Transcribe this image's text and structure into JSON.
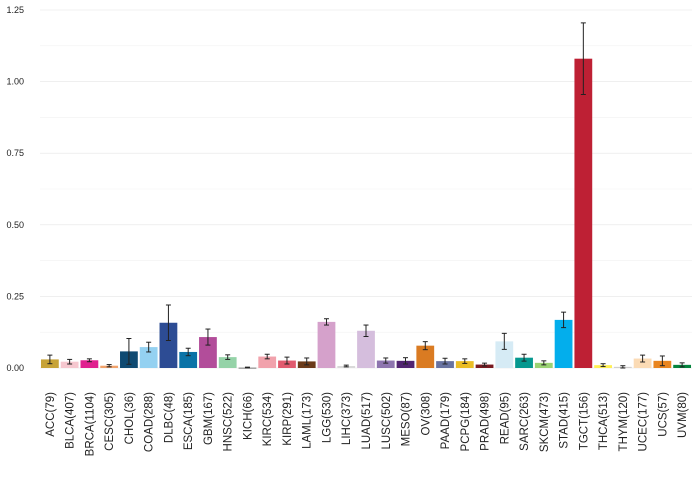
{
  "chart_data": {
    "type": "bar",
    "title": "",
    "xlabel": "",
    "ylabel": "",
    "ylim": [
      0,
      1.25
    ],
    "yticks": [
      0.0,
      0.25,
      0.5,
      0.75,
      1.0,
      1.25
    ],
    "ytick_labels": [
      "0.00",
      "0.25",
      "0.50",
      "0.75",
      "1.00",
      "1.25"
    ],
    "grid": true,
    "legend": "none",
    "categories": [
      "ACC(79)",
      "BLCA(407)",
      "BRCA(1104)",
      "CESC(305)",
      "CHOL(36)",
      "COAD(288)",
      "DLBC(48)",
      "ESCA(185)",
      "GBM(167)",
      "HNSC(522)",
      "KICH(66)",
      "KIRC(534)",
      "KIRP(291)",
      "LAML(173)",
      "LGG(530)",
      "LIHC(373)",
      "LUAD(517)",
      "LUSC(502)",
      "MESO(87)",
      "OV(308)",
      "PAAD(179)",
      "PCPG(184)",
      "PRAD(498)",
      "READ(95)",
      "SARC(263)",
      "SKCM(473)",
      "STAD(415)",
      "TGCT(156)",
      "THCA(513)",
      "THYM(120)",
      "UCEC(177)",
      "UCS(57)",
      "UVM(80)"
    ],
    "values": [
      0.03,
      0.022,
      0.027,
      0.008,
      0.058,
      0.073,
      0.158,
      0.056,
      0.108,
      0.038,
      0.001,
      0.04,
      0.026,
      0.023,
      0.161,
      0.007,
      0.13,
      0.026,
      0.025,
      0.078,
      0.024,
      0.024,
      0.012,
      0.093,
      0.036,
      0.018,
      0.168,
      1.08,
      0.01,
      0.004,
      0.033,
      0.025,
      0.011
    ],
    "errors": [
      0.015,
      0.008,
      0.005,
      0.004,
      0.045,
      0.017,
      0.062,
      0.013,
      0.028,
      0.008,
      0.002,
      0.008,
      0.012,
      0.012,
      0.011,
      0.003,
      0.02,
      0.009,
      0.011,
      0.014,
      0.01,
      0.008,
      0.005,
      0.028,
      0.012,
      0.007,
      0.027,
      0.125,
      0.005,
      0.004,
      0.012,
      0.017,
      0.007
    ],
    "colors": [
      "#C7A337",
      "#F6C7CF",
      "#E01F8F",
      "#F1A26B",
      "#0F4A72",
      "#94D1F1",
      "#2D4C94",
      "#0B73A7",
      "#B24D9A",
      "#95D3A8",
      "#555555",
      "#F1A2AC",
      "#E15B6F",
      "#6B3B1A",
      "#D5A1CB",
      "#D9D9D9",
      "#D5BEDD",
      "#8E75AF",
      "#512471",
      "#DA7B22",
      "#6873A1",
      "#EBBD25",
      "#791A20",
      "#D6EBF5",
      "#06988F",
      "#9AD273",
      "#03AEEC",
      "#BE2034",
      "#FFF055",
      "#D1CFCF",
      "#FBDBB5",
      "#E9851F",
      "#05843E"
    ]
  }
}
